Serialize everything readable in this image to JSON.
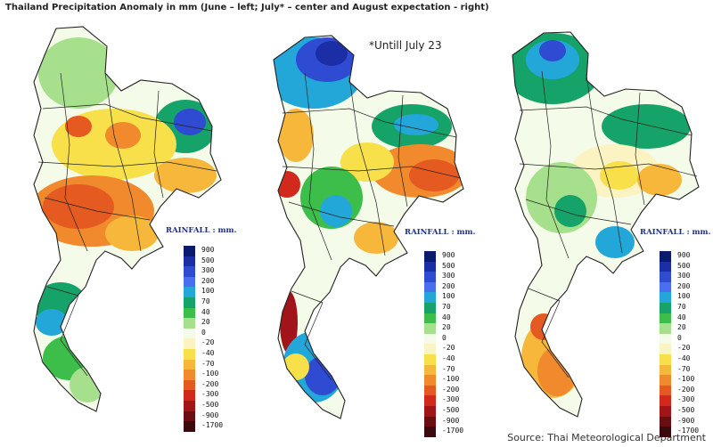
{
  "title": "Thailand Precipitation Anomaly in mm (June – left; July* – center and August expectation - right)",
  "note": "*Untill July 23",
  "source": "Source: Thai Meteorological Department",
  "legend_title": "RAINFALL : mm.",
  "legend": [
    {
      "label": "900",
      "color": "#0a1a6e"
    },
    {
      "label": "500",
      "color": "#1b2ea6"
    },
    {
      "label": "300",
      "color": "#2f4bd1"
    },
    {
      "label": "200",
      "color": "#4a6ef0"
    },
    {
      "label": "100",
      "color": "#22a7d8"
    },
    {
      "label": "70",
      "color": "#16a36a"
    },
    {
      "label": "40",
      "color": "#3dbe4a"
    },
    {
      "label": "20",
      "color": "#a6e08c"
    },
    {
      "label": "0",
      "color": "#f4fbe9"
    },
    {
      "label": "-20",
      "color": "#fbf4c2"
    },
    {
      "label": "-40",
      "color": "#f7e04a"
    },
    {
      "label": "-70",
      "color": "#f6b73a"
    },
    {
      "label": "-100",
      "color": "#f08a2c"
    },
    {
      "label": "-200",
      "color": "#e45a21"
    },
    {
      "label": "-300",
      "color": "#d12a1c"
    },
    {
      "label": "-500",
      "color": "#a0141a"
    },
    {
      "label": "-900",
      "color": "#6a0e12"
    },
    {
      "label": "-1700",
      "color": "#3a0a0c"
    }
  ],
  "panels": [
    {
      "id": "june",
      "caption": "June"
    },
    {
      "id": "july",
      "caption": "July*"
    },
    {
      "id": "august",
      "caption": "August expectation"
    }
  ]
}
